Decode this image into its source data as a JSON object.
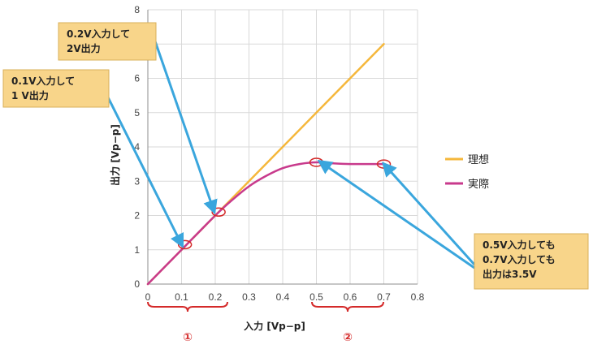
{
  "chart_data": {
    "type": "line",
    "xlabel": "入力 [Vp−p]",
    "ylabel": "出力 [Vp−p]",
    "xlim": [
      0,
      0.8
    ],
    "ylim": [
      0,
      8
    ],
    "x_ticks": [
      "0",
      "0.1",
      "0.2",
      "0.3",
      "0.4",
      "0.5",
      "0.6",
      "0.7",
      "0.8"
    ],
    "y_ticks": [
      "0",
      "1",
      "2",
      "3",
      "4",
      "5",
      "6",
      "7",
      "8"
    ],
    "grid": true,
    "legend_position": "right",
    "series": [
      {
        "name": "理想",
        "color": "#f5b73b",
        "x": [
          0,
          0.7
        ],
        "y": [
          0,
          7
        ]
      },
      {
        "name": "実際",
        "color": "#c83a8c",
        "x": [
          0,
          0.1,
          0.2,
          0.25,
          0.3,
          0.35,
          0.4,
          0.45,
          0.5,
          0.55,
          0.6,
          0.65,
          0.7
        ],
        "y": [
          0,
          1.0,
          2.0,
          2.45,
          2.85,
          3.15,
          3.38,
          3.5,
          3.55,
          3.52,
          3.5,
          3.5,
          3.5
        ]
      }
    ],
    "markers": [
      {
        "x": 0.11,
        "y": 1.15
      },
      {
        "x": 0.21,
        "y": 2.1
      },
      {
        "x": 0.5,
        "y": 3.55
      },
      {
        "x": 0.7,
        "y": 3.5
      }
    ],
    "callouts": [
      {
        "lines": [
          "0.2V入力して",
          "2V出力"
        ]
      },
      {
        "lines": [
          "0.1V入力して",
          " 1 V出力"
        ]
      },
      {
        "lines": [
          "0.5V入力しても",
          "0.7V入力しても",
          "出力は3.5V"
        ]
      }
    ],
    "regions": [
      {
        "label": "①"
      },
      {
        "label": "②"
      }
    ]
  }
}
